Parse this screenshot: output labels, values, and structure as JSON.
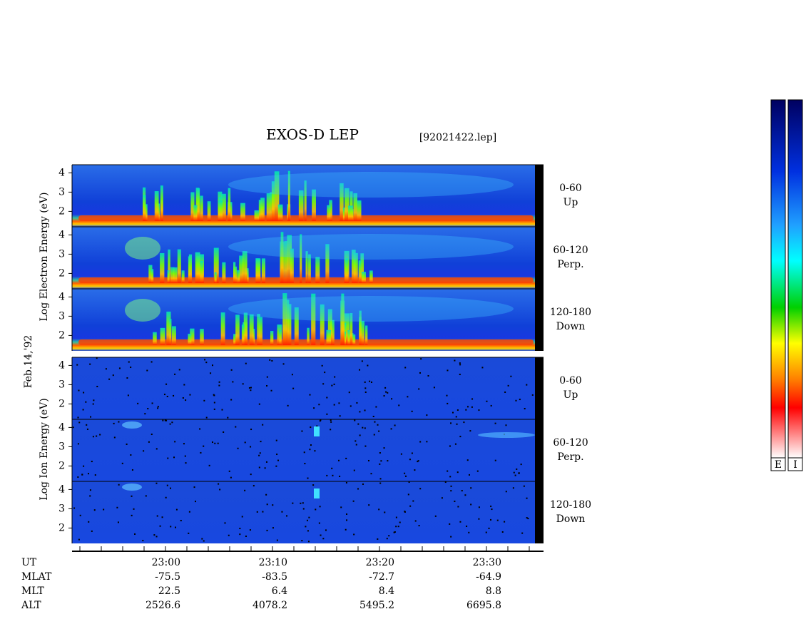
{
  "title": "EXOS-D LEP",
  "file": "[92021422.lep]",
  "date": "Feb.14,'92",
  "electron": {
    "axis_label": "Log  Electron  Energy (eV)",
    "panels": [
      {
        "pitch": "0-60",
        "direction": "Up"
      },
      {
        "pitch": "60-120",
        "direction": "Perp."
      },
      {
        "pitch": "120-180",
        "direction": "Down"
      }
    ]
  },
  "ion": {
    "axis_label": "Log  Ion  Energy (eV)",
    "panels": [
      {
        "pitch": "0-60",
        "direction": "Up"
      },
      {
        "pitch": "60-120",
        "direction": "Perp."
      },
      {
        "pitch": "120-180",
        "direction": "Down"
      }
    ]
  },
  "energy_ticks": [
    2,
    3,
    4
  ],
  "time_axis": {
    "rows": [
      {
        "label": "UT",
        "values": [
          "23:00",
          "23:10",
          "23:20",
          "23:30"
        ]
      },
      {
        "label": "MLAT",
        "values": [
          "-75.5",
          "-83.5",
          "-72.7",
          "-64.9"
        ]
      },
      {
        "label": "MLT",
        "values": [
          "22.5",
          "6.4",
          "8.4",
          "8.8"
        ]
      },
      {
        "label": "ALT",
        "values": [
          "2526.6",
          "4078.2",
          "5495.2",
          "6695.8"
        ]
      }
    ]
  },
  "colorbar_labels": [
    "E",
    "I"
  ]
}
